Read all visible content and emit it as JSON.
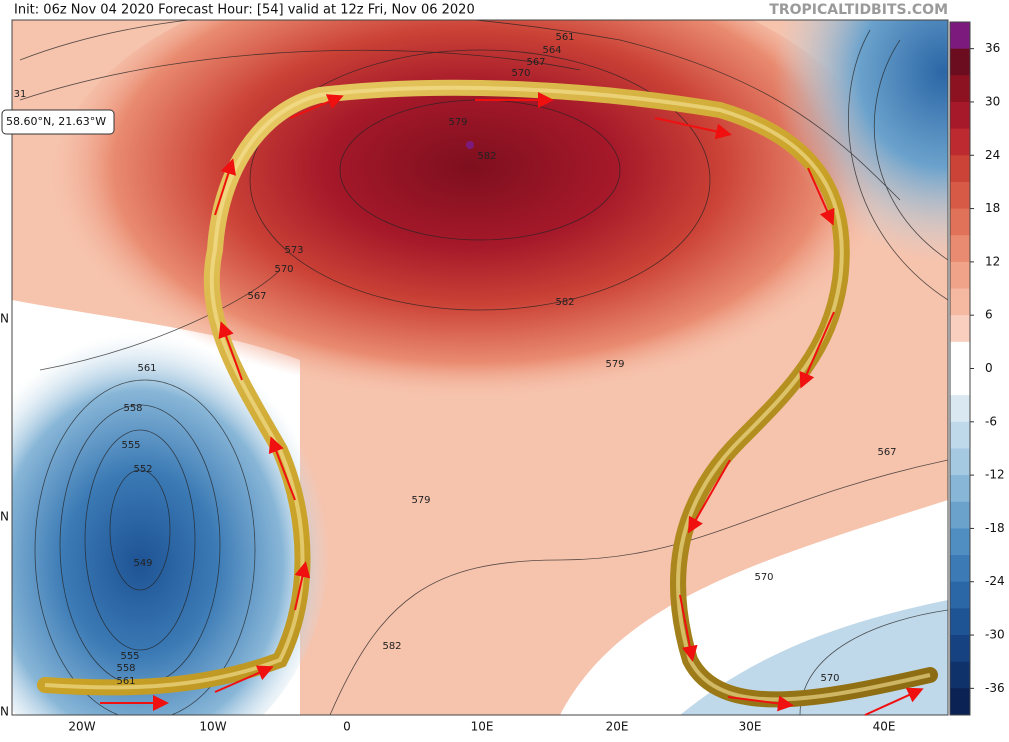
{
  "header": {
    "info": "Init: 06z Nov 04 2020   Forecast Hour: [54]   valid at 12z Fri, Nov 06 2020",
    "watermark": "TROPICALTIDBITS.COM"
  },
  "cursor_readout": "58.60°N, 21.63°W",
  "contour_labels": [
    561,
    564,
    567,
    570,
    579,
    582,
    573,
    570,
    567,
    582,
    579,
    561,
    558,
    555,
    552,
    549,
    555,
    558,
    561,
    579,
    582,
    567,
    570,
    570,
    31
  ],
  "x_axis_labels": [
    "20W",
    "10W",
    "0",
    "10E",
    "20E",
    "30E",
    "40E"
  ],
  "y_axis_labels": [
    "N",
    "N",
    "N"
  ],
  "colorbar": {
    "limits": [
      39,
      -39
    ],
    "ticks": [
      36,
      30,
      24,
      18,
      12,
      6,
      0,
      -6,
      -12,
      -18,
      -24,
      -30,
      -36
    ],
    "colors": [
      "#7d1a7e",
      "#6b0d1f",
      "#8c1222",
      "#a6192a",
      "#bd2a30",
      "#cb4236",
      "#d65a45",
      "#e07259",
      "#e98b70",
      "#f0a388",
      "#f5b9a2",
      "#f9d0bf",
      "#ffffff",
      "#ffffff",
      "#d9e8f1",
      "#c0d9ea",
      "#a5c9e1",
      "#88b6d7",
      "#6ba2cc",
      "#508ec1",
      "#3b7ab5",
      "#2b66a6",
      "#1e5394",
      "#164281",
      "#10326b",
      "#0b2254"
    ]
  }
}
